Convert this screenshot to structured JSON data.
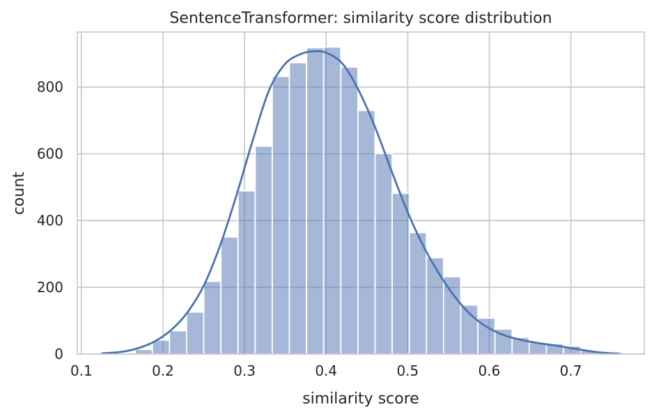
{
  "chart_data": {
    "type": "bar",
    "title": "SentenceTransformer: similarity score distribution",
    "xlabel": "similarity score",
    "ylabel": "count",
    "xlim": [
      0.095,
      0.79
    ],
    "ylim": [
      0,
      965
    ],
    "xticks": [
      "0.1",
      "0.2",
      "0.3",
      "0.4",
      "0.5",
      "0.6",
      "0.7"
    ],
    "yticks": [
      "0",
      "200",
      "400",
      "600",
      "800"
    ],
    "grid": true,
    "bar_color": "#4c72b0",
    "bar_opacity": 0.5,
    "kde_color": "#4c72b0",
    "bins": [
      {
        "x0": 0.124,
        "x1": 0.145,
        "count": 1
      },
      {
        "x0": 0.145,
        "x1": 0.166,
        "count": 4
      },
      {
        "x0": 0.166,
        "x1": 0.187,
        "count": 14
      },
      {
        "x0": 0.187,
        "x1": 0.208,
        "count": 42
      },
      {
        "x0": 0.208,
        "x1": 0.229,
        "count": 70
      },
      {
        "x0": 0.229,
        "x1": 0.25,
        "count": 126
      },
      {
        "x0": 0.25,
        "x1": 0.271,
        "count": 218
      },
      {
        "x0": 0.271,
        "x1": 0.292,
        "count": 351
      },
      {
        "x0": 0.292,
        "x1": 0.313,
        "count": 489
      },
      {
        "x0": 0.313,
        "x1": 0.334,
        "count": 623
      },
      {
        "x0": 0.334,
        "x1": 0.355,
        "count": 832
      },
      {
        "x0": 0.355,
        "x1": 0.376,
        "count": 873
      },
      {
        "x0": 0.376,
        "x1": 0.397,
        "count": 918
      },
      {
        "x0": 0.397,
        "x1": 0.418,
        "count": 920
      },
      {
        "x0": 0.418,
        "x1": 0.439,
        "count": 860
      },
      {
        "x0": 0.439,
        "x1": 0.46,
        "count": 730
      },
      {
        "x0": 0.46,
        "x1": 0.481,
        "count": 601
      },
      {
        "x0": 0.481,
        "x1": 0.502,
        "count": 482
      },
      {
        "x0": 0.502,
        "x1": 0.523,
        "count": 364
      },
      {
        "x0": 0.523,
        "x1": 0.544,
        "count": 289
      },
      {
        "x0": 0.544,
        "x1": 0.565,
        "count": 232
      },
      {
        "x0": 0.565,
        "x1": 0.586,
        "count": 147
      },
      {
        "x0": 0.586,
        "x1": 0.607,
        "count": 108
      },
      {
        "x0": 0.607,
        "x1": 0.628,
        "count": 75
      },
      {
        "x0": 0.628,
        "x1": 0.649,
        "count": 50
      },
      {
        "x0": 0.649,
        "x1": 0.67,
        "count": 35
      },
      {
        "x0": 0.67,
        "x1": 0.691,
        "count": 31
      },
      {
        "x0": 0.691,
        "x1": 0.712,
        "count": 24
      },
      {
        "x0": 0.712,
        "x1": 0.733,
        "count": 11
      }
    ],
    "kde": {
      "x": [
        0.125,
        0.15,
        0.17,
        0.19,
        0.21,
        0.23,
        0.25,
        0.27,
        0.29,
        0.31,
        0.33,
        0.35,
        0.37,
        0.385,
        0.4,
        0.42,
        0.44,
        0.46,
        0.48,
        0.5,
        0.52,
        0.54,
        0.56,
        0.58,
        0.6,
        0.62,
        0.64,
        0.66,
        0.68,
        0.7,
        0.72,
        0.74,
        0.76
      ],
      "y": [
        2,
        7,
        18,
        38,
        72,
        125,
        205,
        325,
        475,
        640,
        790,
        870,
        900,
        907,
        903,
        870,
        790,
        680,
        550,
        425,
        320,
        235,
        165,
        112,
        77,
        55,
        42,
        33,
        26,
        18,
        10,
        4,
        1
      ]
    }
  }
}
